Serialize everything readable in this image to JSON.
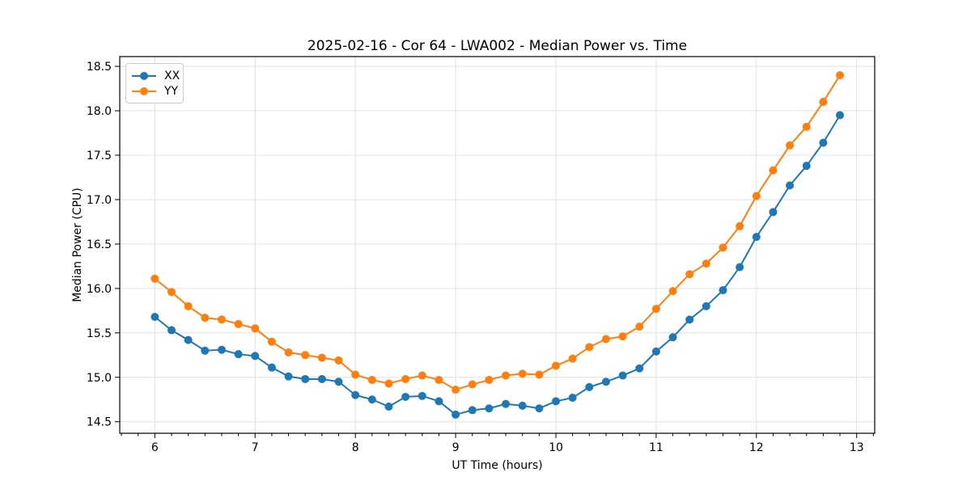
{
  "page": {
    "background": "#ffffff"
  },
  "chart_data": {
    "type": "line",
    "title": "2025-02-16 - Cor 64 - LWA002 - Median Power vs. Time",
    "xlabel": "UT Time (hours)",
    "ylabel": "Median Power (CPU)",
    "xlim": [
      5.65,
      13.18
    ],
    "ylim": [
      14.37,
      18.61
    ],
    "xticks": [
      6,
      7,
      8,
      9,
      10,
      11,
      12,
      13
    ],
    "xtick_labels": [
      "6",
      "7",
      "8",
      "9",
      "10",
      "11",
      "12",
      "13"
    ],
    "yticks": [
      14.5,
      15.0,
      15.5,
      16.0,
      16.5,
      17.0,
      17.5,
      18.0,
      18.5
    ],
    "ytick_labels": [
      "14.5",
      "15.0",
      "15.5",
      "16.0",
      "16.5",
      "17.0",
      "17.5",
      "18.0",
      "18.5"
    ],
    "minor_xtick_step": 0.166667,
    "grid": true,
    "grid_color": "#e0e0e0",
    "spine_color": "#000000",
    "legend_position": "upper-left",
    "marker": "circle",
    "marker_radius": 5,
    "line_width": 2,
    "x": [
      6.0,
      6.1667,
      6.3333,
      6.5,
      6.6667,
      6.8333,
      7.0,
      7.1667,
      7.3333,
      7.5,
      7.6667,
      7.8333,
      8.0,
      8.1667,
      8.3333,
      8.5,
      8.6667,
      8.8333,
      9.0,
      9.1667,
      9.3333,
      9.5,
      9.6667,
      9.8333,
      10.0,
      10.1667,
      10.3333,
      10.5,
      10.6667,
      10.8333,
      11.0,
      11.1667,
      11.3333,
      11.5,
      11.6667,
      11.8333,
      12.0,
      12.1667,
      12.3333,
      12.5,
      12.6667,
      12.8333
    ],
    "series": [
      {
        "name": "XX",
        "color": "#1f77b4",
        "values": [
          15.68,
          15.53,
          15.42,
          15.3,
          15.31,
          15.26,
          15.24,
          15.11,
          15.01,
          14.98,
          14.98,
          14.95,
          14.8,
          14.75,
          14.67,
          14.78,
          14.79,
          14.73,
          14.58,
          14.63,
          14.65,
          14.7,
          14.68,
          14.65,
          14.73,
          14.77,
          14.89,
          14.95,
          15.02,
          15.1,
          15.29,
          15.45,
          15.65,
          15.8,
          15.98,
          16.24,
          16.58,
          16.86,
          17.16,
          17.38,
          17.64,
          17.95
        ]
      },
      {
        "name": "YY",
        "color": "#ff7f0e",
        "values": [
          16.11,
          15.96,
          15.8,
          15.67,
          15.65,
          15.6,
          15.55,
          15.4,
          15.28,
          15.25,
          15.22,
          15.19,
          15.03,
          14.97,
          14.93,
          14.98,
          15.02,
          14.97,
          14.86,
          14.92,
          14.97,
          15.02,
          15.04,
          15.03,
          15.13,
          15.21,
          15.34,
          15.43,
          15.46,
          15.57,
          15.77,
          15.97,
          16.16,
          16.28,
          16.46,
          16.7,
          17.04,
          17.33,
          17.61,
          17.82,
          18.1,
          18.4
        ]
      }
    ]
  }
}
